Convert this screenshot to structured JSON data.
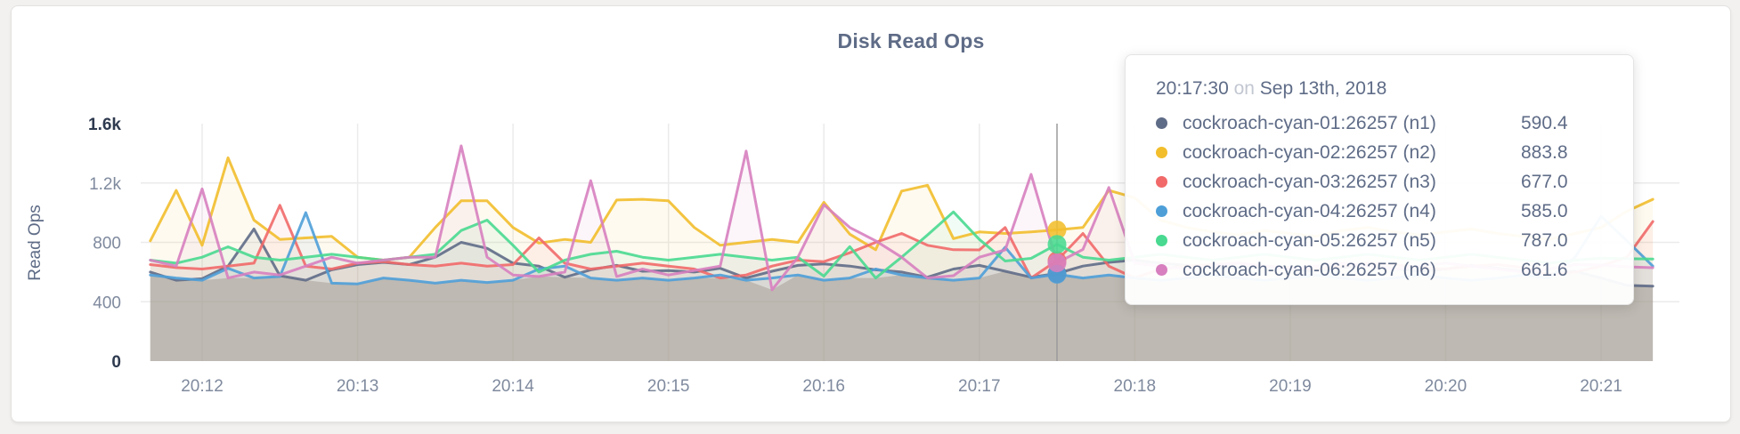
{
  "card": {
    "background": "#ffffff"
  },
  "chart": {
    "title": "Disk Read Ops",
    "ylabel": "Read Ops",
    "yticks": [
      {
        "label": "1.6k",
        "value": 1600,
        "line": false,
        "emph": true
      },
      {
        "label": "1.2k",
        "value": 1200,
        "line": true,
        "emph": false
      },
      {
        "label": "800",
        "value": 800,
        "line": true,
        "emph": false
      },
      {
        "label": "400",
        "value": 400,
        "line": true,
        "emph": false
      },
      {
        "label": "0",
        "value": 0,
        "line": false,
        "emph": true
      }
    ],
    "x_ticks": [
      "20:12",
      "20:13",
      "20:14",
      "20:15",
      "20:16",
      "20:17",
      "20:18",
      "20:19",
      "20:20",
      "20:21"
    ],
    "colors": {
      "grid": "#ebebeb",
      "hover_line": "#9b9b9b",
      "axis_text": "#7f8a9e",
      "axis_text_emph": "#2e3a4f",
      "title_text": "#5f6c87",
      "min_envelope_fill": "rgba(175,169,158,0.55)"
    }
  },
  "chart_data": {
    "type": "line",
    "title": "Disk Read Ops",
    "xlabel": "",
    "ylabel": "Read Ops",
    "ylim": [
      0,
      1600
    ],
    "grid": true,
    "legend_position": "tooltip-only",
    "x_start": "20:11:40",
    "x_end": "20:21:20",
    "x_step_seconds": 10,
    "x_tick_labels": [
      "20:12",
      "20:13",
      "20:14",
      "20:15",
      "20:16",
      "20:17",
      "20:18",
      "20:19",
      "20:20",
      "20:21"
    ],
    "hover_time": "20:17:30",
    "series": [
      {
        "name": "cockroach-cyan-01:26257 (n1)",
        "color": "#5F6C87",
        "values": [
          600,
          545,
          555,
          640,
          890,
          575,
          545,
          615,
          650,
          665,
          650,
          700,
          800,
          760,
          660,
          640,
          565,
          615,
          645,
          605,
          610,
          600,
          625,
          560,
          605,
          645,
          655,
          640,
          615,
          600,
          565,
          620,
          645,
          605,
          565,
          590.4,
          640,
          665,
          680,
          660,
          645,
          625,
          630,
          640,
          620,
          605,
          630,
          645,
          625,
          605,
          620,
          645,
          625,
          605,
          585,
          605,
          560,
          510,
          505
        ]
      },
      {
        "name": "cockroach-cyan-02:26257 (n2)",
        "color": "#F2BE2C",
        "values": [
          810,
          1150,
          780,
          1370,
          950,
          820,
          830,
          840,
          700,
          680,
          700,
          900,
          1080,
          1080,
          900,
          795,
          820,
          800,
          1085,
          1090,
          1080,
          900,
          780,
          800,
          820,
          800,
          1070,
          855,
          750,
          1145,
          1185,
          825,
          870,
          860,
          870,
          883.8,
          900,
          1150,
          1100,
          950,
          900,
          870,
          850,
          880,
          860,
          840,
          880,
          900,
          870,
          850,
          870,
          890,
          860,
          840,
          820,
          860,
          900,
          1010,
          1090
        ]
      },
      {
        "name": "cockroach-cyan-03:26257 (n3)",
        "color": "#F16969",
        "values": [
          650,
          630,
          620,
          640,
          660,
          1050,
          640,
          620,
          660,
          670,
          650,
          640,
          660,
          640,
          650,
          830,
          660,
          620,
          640,
          660,
          640,
          620,
          560,
          580,
          640,
          680,
          670,
          730,
          800,
          860,
          780,
          750,
          749,
          900,
          560,
          677,
          860,
          640,
          560,
          620,
          640,
          650,
          660,
          640,
          630,
          620,
          640,
          660,
          650,
          630,
          620,
          640,
          650,
          630,
          580,
          600,
          640,
          700,
          940
        ]
      },
      {
        "name": "cockroach-cyan-04:26257 (n4)",
        "color": "#4E9FD8",
        "values": [
          580,
          560,
          545,
          625,
          560,
          570,
          1000,
          525,
          520,
          560,
          545,
          525,
          545,
          530,
          545,
          620,
          640,
          560,
          545,
          560,
          545,
          560,
          580,
          545,
          560,
          580,
          545,
          560,
          620,
          580,
          560,
          545,
          560,
          767,
          560,
          585,
          560,
          580,
          560,
          545,
          560,
          580,
          560,
          545,
          560,
          580,
          560,
          545,
          560,
          580,
          560,
          545,
          560,
          580,
          560,
          700,
          976,
          810,
          640
        ]
      },
      {
        "name": "cockroach-cyan-05:26257 (n5)",
        "color": "#49D990",
        "values": [
          680,
          660,
          700,
          770,
          700,
          680,
          700,
          720,
          700,
          680,
          700,
          720,
          880,
          950,
          780,
          600,
          680,
          720,
          740,
          700,
          680,
          700,
          720,
          700,
          680,
          700,
          572,
          771,
          560,
          700,
          850,
          1005,
          820,
          674,
          692,
          787,
          700,
          680,
          700,
          720,
          700,
          680,
          700,
          720,
          700,
          680,
          700,
          720,
          700,
          680,
          700,
          720,
          700,
          680,
          660,
          680,
          694,
          690,
          688
        ]
      },
      {
        "name": "cockroach-cyan-06:26257 (n6)",
        "color": "#D77FBF",
        "values": [
          680,
          640,
          1160,
          560,
          600,
          580,
          640,
          700,
          660,
          680,
          700,
          700,
          1450,
          700,
          580,
          570,
          600,
          1215,
          570,
          620,
          580,
          610,
          640,
          1415,
          480,
          700,
          1053,
          900,
          810,
          700,
          560,
          575,
          700,
          749,
          1258,
          661.6,
          752,
          1170,
          660,
          640,
          620,
          640,
          660,
          640,
          620,
          640,
          660,
          640,
          620,
          640,
          660,
          640,
          620,
          600,
          620,
          650,
          647,
          635,
          629
        ]
      }
    ]
  },
  "tooltip": {
    "time": "20:17:30",
    "conj": "on",
    "date": "Sep 13th, 2018",
    "hover_index": 35,
    "rows": [
      {
        "name": "cockroach-cyan-01:26257 (n1)",
        "value": "590.4",
        "color": "#5F6C87"
      },
      {
        "name": "cockroach-cyan-02:26257 (n2)",
        "value": "883.8",
        "color": "#F2BE2C"
      },
      {
        "name": "cockroach-cyan-03:26257 (n3)",
        "value": "677.0",
        "color": "#F16969"
      },
      {
        "name": "cockroach-cyan-04:26257 (n4)",
        "value": "585.0",
        "color": "#4E9FD8"
      },
      {
        "name": "cockroach-cyan-05:26257 (n5)",
        "value": "787.0",
        "color": "#49D990"
      },
      {
        "name": "cockroach-cyan-06:26257 (n6)",
        "value": "661.6",
        "color": "#D77FBF"
      }
    ]
  }
}
